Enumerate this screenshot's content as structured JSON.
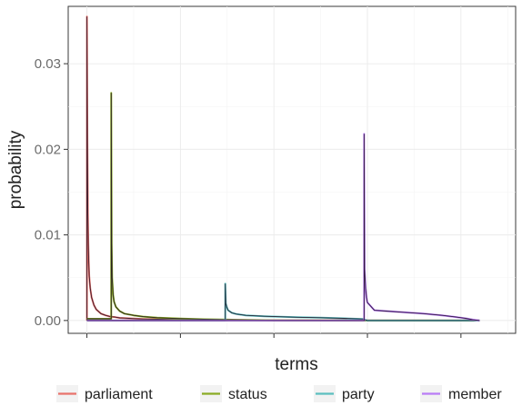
{
  "chart_data": {
    "type": "line",
    "xlabel": "terms",
    "ylabel": "probability",
    "ylim": [
      -0.0015,
      0.0367
    ],
    "xlim": [
      -40,
      917
    ],
    "y_ticks": [
      {
        "value": 0.0,
        "label": "0.00"
      },
      {
        "value": 0.01,
        "label": "0.01"
      },
      {
        "value": 0.02,
        "label": "0.02"
      },
      {
        "value": 0.03,
        "label": "0.03"
      }
    ],
    "x_ticks": [
      0,
      200,
      400,
      600,
      800
    ],
    "grid": true,
    "legend_position": "bottom",
    "series": [
      {
        "name": "parliament",
        "color": "#E8736C",
        "x": [
          0,
          0,
          1,
          2,
          3,
          4,
          5,
          7,
          10,
          15,
          20,
          30,
          40,
          50,
          60,
          70,
          80,
          90,
          100,
          120,
          150,
          200,
          300,
          400,
          600,
          700,
          800,
          840
        ],
        "y": [
          0.0,
          0.0355,
          0.021,
          0.0125,
          0.009,
          0.0068,
          0.0052,
          0.0038,
          0.0027,
          0.0018,
          0.0013,
          0.0008,
          0.0006,
          0.00045,
          0.0004,
          0.0003,
          0.00028,
          0.00025,
          0.00022,
          0.00018,
          0.00015,
          0.0001,
          5e-05,
          3e-05,
          2e-05,
          1e-05,
          0.0,
          0.0
        ]
      },
      {
        "name": "status",
        "color": "#8AAB25",
        "x": [
          0,
          40,
          52,
          52,
          53,
          54,
          56,
          58,
          62,
          70,
          80,
          100,
          120,
          150,
          200,
          250,
          300,
          350,
          400,
          450,
          500,
          600,
          700,
          800,
          840
        ],
        "y": [
          0.0002,
          0.0002,
          0.0002,
          0.0266,
          0.009,
          0.005,
          0.003,
          0.0022,
          0.0016,
          0.0011,
          0.0008,
          0.0006,
          0.00045,
          0.00033,
          0.00022,
          0.00015,
          0.0001,
          6e-05,
          3e-05,
          2e-05,
          1e-05,
          0.0,
          0.0,
          0.0,
          0.0
        ]
      },
      {
        "name": "party",
        "color": "#5CBFC0",
        "x": [
          0,
          150,
          296,
          296,
          297,
          299,
          302,
          310,
          320,
          340,
          380,
          450,
          500,
          550,
          590,
          600,
          700,
          800,
          840
        ],
        "y": [
          0.0,
          0.0,
          0.0,
          0.0043,
          0.002,
          0.0016,
          0.0012,
          0.0009,
          0.00075,
          0.0006,
          0.0005,
          0.00038,
          0.00032,
          0.00025,
          0.00018,
          0.0,
          0.0,
          0.0,
          0.0
        ]
      },
      {
        "name": "member",
        "color": "#B97DF6",
        "x": [
          0,
          200,
          400,
          593,
          593,
          594,
          596,
          598,
          600,
          605,
          615,
          640,
          680,
          720,
          760,
          790,
          810,
          825,
          840
        ],
        "y": [
          0.0,
          0.0,
          0.0,
          0.0,
          0.0218,
          0.006,
          0.0038,
          0.0027,
          0.0021,
          0.0018,
          0.0012,
          0.0011,
          0.00095,
          0.0008,
          0.0006,
          0.0004,
          0.00025,
          0.0001,
          0.0
        ]
      }
    ]
  }
}
